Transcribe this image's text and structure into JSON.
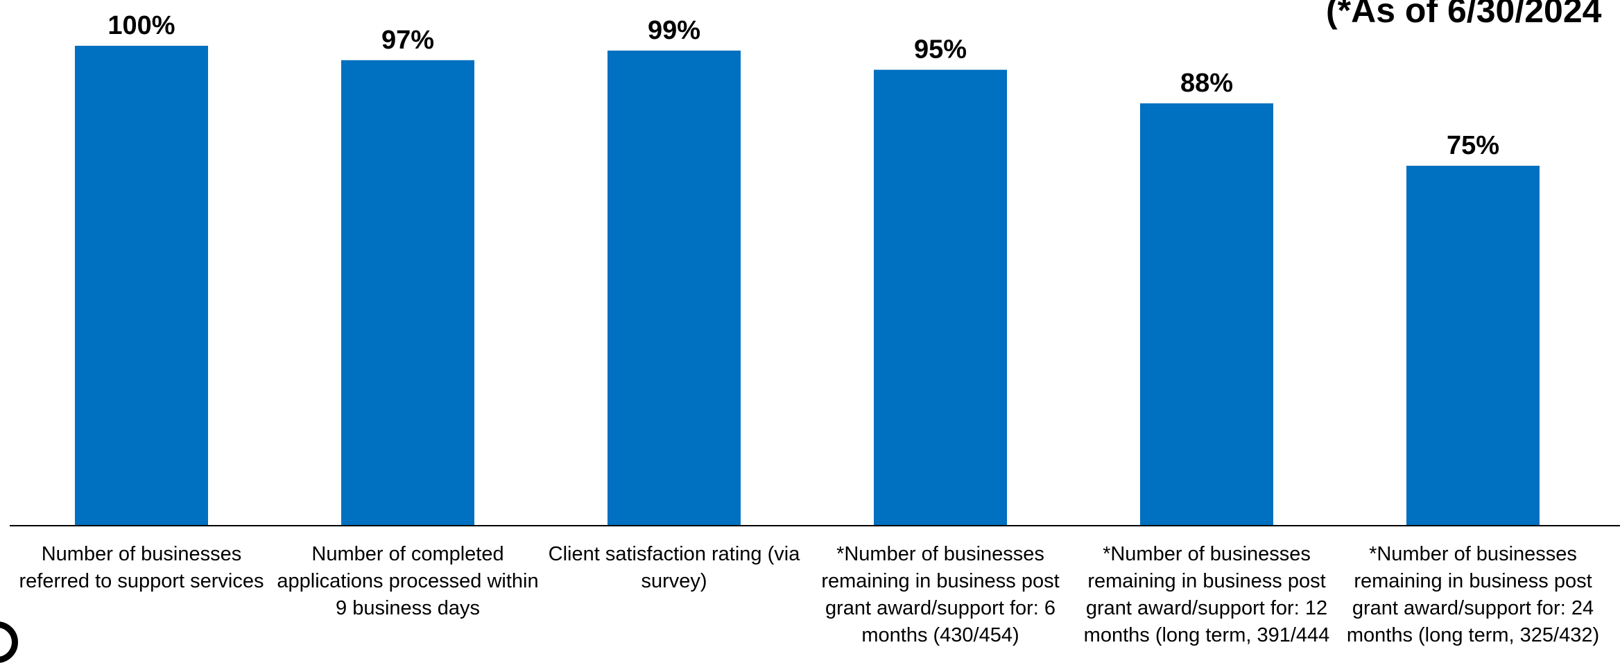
{
  "annotation": "(*As of 6/30/2024",
  "chart_data": {
    "type": "bar",
    "categories": [
      "Number of businesses referred to support services",
      "Number of completed applications processed within 9 business days",
      "Client satisfaction rating (via survey)",
      "*Number of businesses remaining in business post grant award/support for: 6 months (430/454)",
      "*Number of businesses remaining in business post grant award/support for: 12 months (long term, 391/444",
      "*Number of businesses remaining in business post grant award/support for: 24 months (long term, 325/432)"
    ],
    "values": [
      100,
      97,
      99,
      95,
      88,
      75
    ],
    "value_labels": [
      "100%",
      "97%",
      "99%",
      "95%",
      "88%",
      "75%"
    ],
    "ylim": [
      0,
      100
    ],
    "grid": false,
    "bar_color": "#0070C0"
  }
}
